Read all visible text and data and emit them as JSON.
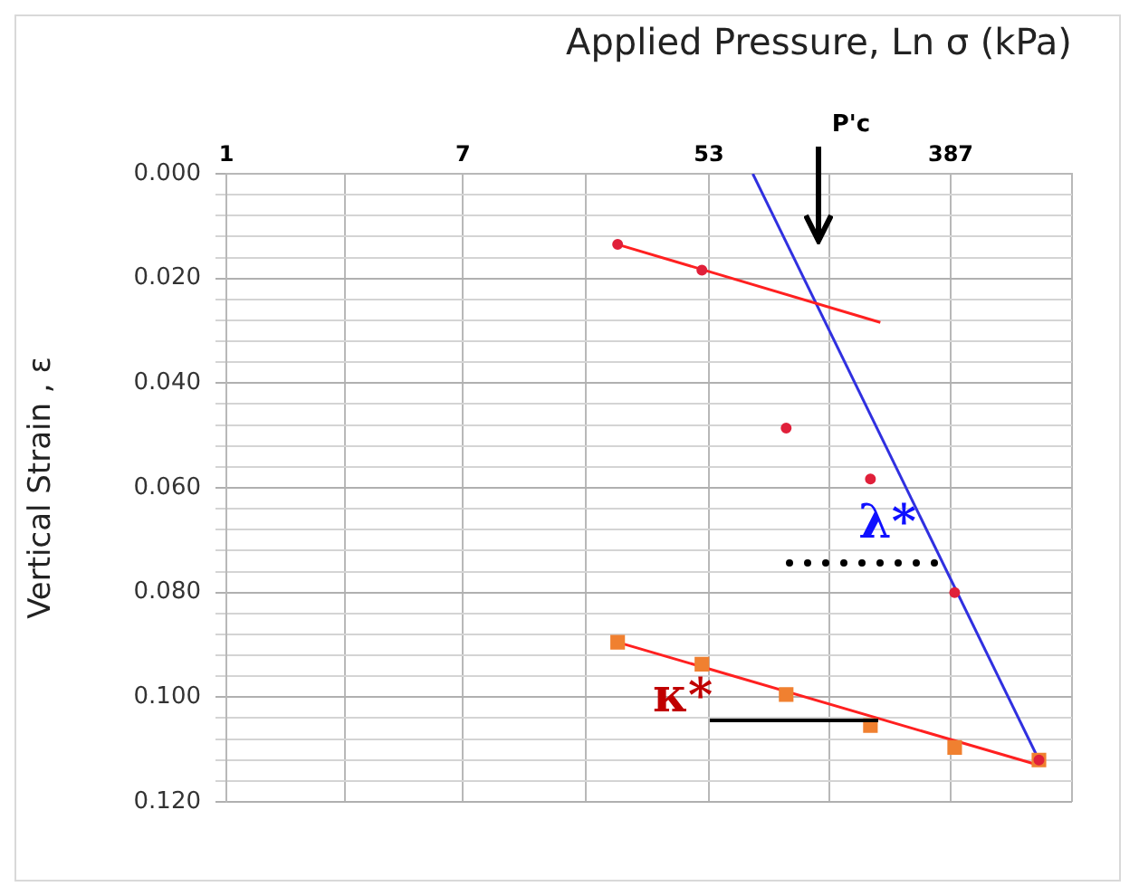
{
  "chart_data": {
    "type": "scatter",
    "xlabel": "Applied Pressure, Ln σ (kPa)",
    "ylabel": "Vertical Strain , ε",
    "log": "x",
    "xlim": [
      1,
      1050
    ],
    "xticks": [
      1,
      {
        "value": 2.65,
        "label": null
      },
      7,
      {
        "value": 19.3,
        "label": null
      },
      53,
      {
        "value": 143,
        "label": null
      },
      387,
      {
        "value": 1050,
        "label": null
      }
    ],
    "ylim": [
      0.12,
      0
    ],
    "yticks": [
      {
        "value": 0,
        "label": "0.000"
      },
      {
        "value": 0.004,
        "label": null
      },
      {
        "value": 0.008,
        "label": null
      },
      {
        "value": 0.012,
        "label": null
      },
      {
        "value": 0.016,
        "label": null
      },
      {
        "value": 0.02,
        "label": "0.020"
      },
      {
        "value": 0.024,
        "label": null
      },
      {
        "value": 0.028,
        "label": null
      },
      {
        "value": 0.032,
        "label": null
      },
      {
        "value": 0.036,
        "label": null
      },
      {
        "value": 0.04,
        "label": "0.040"
      },
      {
        "value": 0.044,
        "label": null
      },
      {
        "value": 0.048,
        "label": null
      },
      {
        "value": 0.052,
        "label": null
      },
      {
        "value": 0.056,
        "label": null
      },
      {
        "value": 0.06,
        "label": "0.060"
      },
      {
        "value": 0.064,
        "label": null
      },
      {
        "value": 0.068,
        "label": null
      },
      {
        "value": 0.072,
        "label": null
      },
      {
        "value": 0.076,
        "label": null
      },
      {
        "value": 0.08,
        "label": "0.080"
      },
      {
        "value": 0.084,
        "label": null
      },
      {
        "value": 0.088,
        "label": null
      },
      {
        "value": 0.092,
        "label": null
      },
      {
        "value": 0.096,
        "label": null
      },
      {
        "value": 0.1,
        "label": "0.100"
      },
      {
        "value": 0.104,
        "label": null
      },
      {
        "value": 0.108,
        "label": null
      },
      {
        "value": 0.112,
        "label": null
      },
      {
        "value": 0.116,
        "label": null
      },
      {
        "value": 0.12,
        "label": "0.120"
      }
    ],
    "grid": true,
    "legend": false,
    "series": [
      {
        "type": "line",
        "color": "#ff2020",
        "x": [
          25,
          217
        ],
        "values": [
          0.0135,
          0.0284
        ],
        "marker": "none"
      },
      {
        "type": "line",
        "color": "#3030e0",
        "x": [
          76,
          800
        ],
        "values": [
          0,
          0.112
        ],
        "marker": "none"
      },
      {
        "type": "line",
        "color": "#ff2020",
        "x": [
          25,
          800
        ],
        "values": [
          0.0895,
          0.113
        ],
        "marker": "none"
      },
      {
        "type": "scatter",
        "color": "#e0203a",
        "x": [
          25,
          50,
          100,
          200,
          400,
          800
        ],
        "values": [
          0.0135,
          0.0184,
          0.0486,
          0.0583,
          0.08,
          0.112
        ],
        "marker": "circle"
      },
      {
        "type": "scatter",
        "color": "#f08030",
        "x": [
          25,
          50,
          100,
          200,
          400,
          800
        ],
        "values": [
          0.0895,
          0.0937,
          0.0995,
          0.1054,
          0.1096,
          0.112
        ],
        "marker": "square"
      }
    ],
    "annotations": [
      "P'c",
      "λ*",
      "κ*"
    ]
  }
}
